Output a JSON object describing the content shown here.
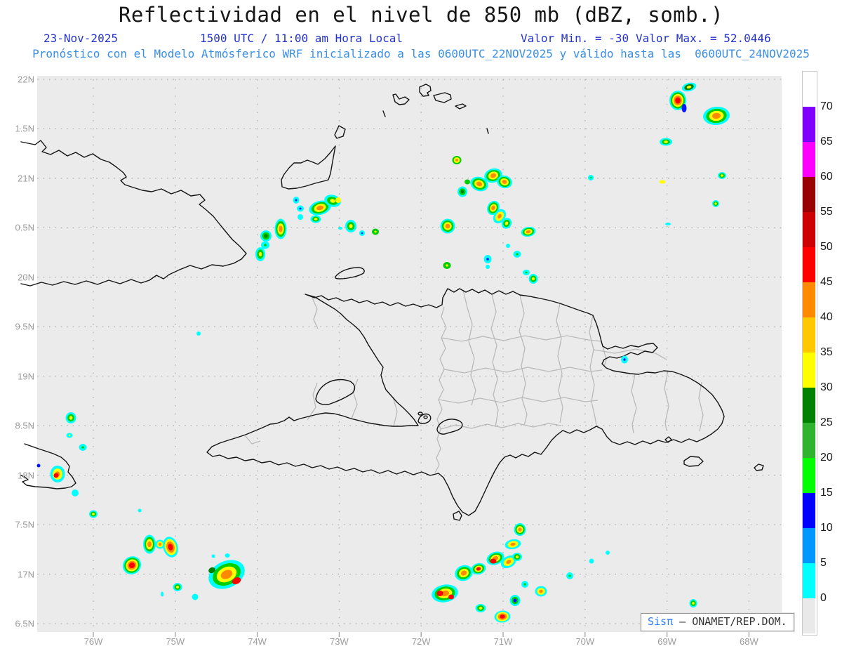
{
  "title": "Reflectividad en el nivel de 850 mb (dBZ, somb.)",
  "subtitle": {
    "date": "23-Nov-2025",
    "time_local": "1500 UTC / 11:00 am Hora Local",
    "valor_min": "Valor Min. = -30",
    "valor_max": "Valor Max. = 52.0446",
    "forecast": "Pronóstico con el Modelo Atmósferico WRF inicializado a las 0600UTC_22NOV2025 y válido hasta las  0600UTC_24NOV2025"
  },
  "axes": {
    "lat_labels": [
      "22N",
      "1.5N",
      "21N",
      "0.5N",
      "20N",
      "9.5N",
      "19N",
      "8.5N",
      "18N",
      "7.5N",
      "17N",
      "6.5N"
    ],
    "lon_labels": [
      "76W",
      "75W",
      "74W",
      "73W",
      "72W",
      "71W",
      "70W",
      "69W",
      "68W"
    ]
  },
  "colorbar": {
    "labels": [
      "70",
      "65",
      "60",
      "55",
      "50",
      "45",
      "40",
      "35",
      "30",
      "25",
      "20",
      "15",
      "10",
      "5",
      "0"
    ],
    "segments": [
      "#FFFFFF",
      "#8000FF",
      "#FF00FF",
      "#990000",
      "#CC0000",
      "#FF0000",
      "#FF8A00",
      "#FFC800",
      "#FFFF00",
      "#008000",
      "#30B430",
      "#00FF00",
      "#0000FF",
      "#0096FF",
      "#00FFFF",
      "#E9E9E9"
    ]
  },
  "attribution": {
    "brand": "Sisπ",
    "org": " – ONAMET/REP.DOM."
  },
  "palette": {
    "c": "#00FFFF",
    "b": "#0018FF",
    "g": "#00CE00",
    "dg": "#007F00",
    "y": "#FFFF00",
    "o": "#FF8A00",
    "r": "#FF0000"
  },
  "radar_cells": [
    [
      400,
      326,
      17,
      29,
      0,
      "c,g,y,o"
    ],
    [
      379,
      336,
      16,
      16,
      0,
      "c,g,dg"
    ],
    [
      378,
      349,
      12,
      11,
      0,
      "c,g"
    ],
    [
      371,
      362,
      14,
      20,
      0,
      "c,g,y"
    ],
    [
      422,
      285,
      9,
      10,
      0,
      "c,b"
    ],
    [
      428,
      297,
      10,
      9,
      0,
      "c,b"
    ],
    [
      428,
      309,
      8,
      8,
      0,
      "c"
    ],
    [
      456,
      296,
      32,
      20,
      -15,
      "c,g,y,o"
    ],
    [
      474,
      286,
      24,
      17,
      15,
      "c,g,y"
    ],
    [
      482,
      285,
      8,
      8,
      0,
      "y"
    ],
    [
      450,
      312,
      15,
      11,
      0,
      "c,g,y"
    ],
    [
      500,
      322,
      16,
      18,
      0,
      "c,g,y"
    ],
    [
      516,
      332,
      8,
      8,
      0,
      "c,b"
    ],
    [
      535,
      330,
      10,
      9,
      0,
      "g,y"
    ],
    [
      485,
      325,
      6,
      4,
      0,
      "c"
    ],
    [
      283,
      475,
      6,
      6,
      0,
      "c"
    ],
    [
      651,
      228,
      13,
      12,
      0,
      "g,y,o"
    ],
    [
      683,
      262,
      26,
      20,
      20,
      "c,g,y,o"
    ],
    [
      703,
      250,
      26,
      20,
      -15,
      "c,g,y,o"
    ],
    [
      719,
      259,
      22,
      18,
      15,
      "c,g,y,o"
    ],
    [
      666,
      259,
      8,
      7,
      0,
      "g"
    ],
    [
      659,
      273,
      14,
      15,
      0,
      "c,g,dg"
    ],
    [
      703,
      296,
      17,
      21,
      25,
      "c,g,y,o"
    ],
    [
      712,
      308,
      16,
      22,
      35,
      "c,y,o"
    ],
    [
      722,
      318,
      14,
      16,
      30,
      "c,g,y"
    ],
    [
      753,
      330,
      21,
      14,
      -10,
      "c,g,y,o"
    ],
    [
      638,
      322,
      21,
      21,
      0,
      "c,g,y,o"
    ],
    [
      724,
      350,
      6,
      6,
      0,
      "c"
    ],
    [
      737,
      362,
      11,
      10,
      0,
      "c,g"
    ],
    [
      695,
      369,
      11,
      12,
      0,
      "c,b"
    ],
    [
      637,
      378,
      11,
      10,
      0,
      "g,y"
    ],
    [
      695,
      380,
      6,
      6,
      0,
      "c"
    ],
    [
      750,
      388,
      10,
      8,
      0,
      "c,g"
    ],
    [
      760,
      397,
      13,
      14,
      0,
      "c,g,y"
    ],
    [
      842,
      253,
      8,
      8,
      0,
      "c,g"
    ],
    [
      952,
      319,
      8,
      4,
      0,
      "c"
    ],
    [
      982,
      124,
      21,
      12,
      -15,
      "c,dg,y"
    ],
    [
      966,
      143,
      24,
      28,
      0,
      "c,g,y,o,r"
    ],
    [
      975,
      154,
      7,
      12,
      0,
      "b"
    ],
    [
      1021,
      165,
      38,
      26,
      -5,
      "c,g,y,o"
    ],
    [
      949,
      202,
      18,
      11,
      0,
      "c,g,y"
    ],
    [
      1029,
      250,
      12,
      10,
      0,
      "c,g,y"
    ],
    [
      944,
      259,
      9,
      5,
      0,
      "y"
    ],
    [
      1020,
      290,
      10,
      10,
      0,
      "c,g,y"
    ],
    [
      890,
      512,
      10,
      11,
      0,
      "c,b"
    ],
    [
      101,
      595,
      15,
      16,
      0,
      "c,g,y"
    ],
    [
      99,
      620,
      9,
      7,
      0,
      "c,y"
    ],
    [
      118,
      637,
      11,
      10,
      0,
      "c,g"
    ],
    [
      82,
      675,
      21,
      24,
      0,
      "c,y,o"
    ],
    [
      80,
      677,
      7,
      7,
      0,
      "r"
    ],
    [
      55,
      663,
      5,
      5,
      0,
      "b"
    ],
    [
      107,
      702,
      10,
      10,
      0,
      "c"
    ],
    [
      133,
      732,
      12,
      11,
      0,
      "c,g,y"
    ],
    [
      199,
      727,
      5,
      5,
      0,
      "c"
    ],
    [
      213,
      775,
      18,
      27,
      0,
      "c,g,y,o"
    ],
    [
      228,
      775,
      13,
      13,
      0,
      "c,y,o"
    ],
    [
      243,
      779,
      21,
      30,
      -15,
      "c,y,o,r"
    ],
    [
      188,
      805,
      27,
      25,
      -40,
      "c,g,y,o,r"
    ],
    [
      323,
      818,
      54,
      38,
      -25,
      "c,g,y,o"
    ],
    [
      337,
      827,
      13,
      9,
      -25,
      "r"
    ],
    [
      302,
      812,
      10,
      8,
      -25,
      "dg"
    ],
    [
      253,
      836,
      13,
      12,
      0,
      "c,g,y"
    ],
    [
      304,
      792,
      5,
      5,
      0,
      "c"
    ],
    [
      324,
      791,
      7,
      6,
      0,
      "c"
    ],
    [
      231,
      846,
      4,
      7,
      0,
      "c"
    ],
    [
      278,
      850,
      9,
      9,
      0,
      "c"
    ],
    [
      741,
      754,
      17,
      18,
      0,
      "c,g,y,o"
    ],
    [
      731,
      775,
      23,
      14,
      -10,
      "c,y,o"
    ],
    [
      706,
      795,
      26,
      18,
      -20,
      "c,g,y,o"
    ],
    [
      703,
      799,
      9,
      7,
      0,
      "r"
    ],
    [
      725,
      800,
      24,
      16,
      -30,
      "c,y,o"
    ],
    [
      737,
      793,
      14,
      12,
      0,
      "c,g,y"
    ],
    [
      682,
      810,
      21,
      16,
      -15,
      "c,g,y,r"
    ],
    [
      661,
      816,
      26,
      22,
      -20,
      "c,g,y,o"
    ],
    [
      634,
      845,
      38,
      25,
      -10,
      "c,g,y,o"
    ],
    [
      627,
      845,
      9,
      8,
      0,
      "r"
    ],
    [
      643,
      850,
      8,
      7,
      0,
      "r"
    ],
    [
      685,
      866,
      15,
      12,
      0,
      "c,g,y"
    ],
    [
      716,
      878,
      23,
      17,
      -5,
      "c,y,o,r"
    ],
    [
      734,
      855,
      15,
      16,
      0,
      "c,g,b"
    ],
    [
      771,
      842,
      17,
      15,
      0,
      "c,y,o"
    ],
    [
      748,
      832,
      10,
      10,
      0,
      "c,g"
    ],
    [
      812,
      820,
      10,
      10,
      0,
      "c,g"
    ],
    [
      988,
      859,
      11,
      12,
      0,
      "c,g,y"
    ],
    [
      843,
      799,
      7,
      7,
      0,
      "c"
    ],
    [
      866,
      787,
      6,
      6,
      0,
      "c"
    ]
  ]
}
